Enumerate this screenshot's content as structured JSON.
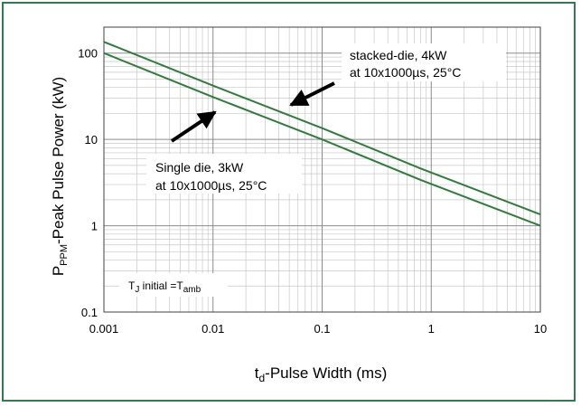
{
  "colors": {
    "frame_border": "#2e7d4f",
    "series_line": "#2e7d3a",
    "grid_major": "#8c8c8c",
    "grid_minor": "#c8c8c8",
    "arrow": "#000000"
  },
  "chart_data": {
    "type": "line",
    "title": "",
    "xlabel": "-Pulse Width (ms)",
    "xlabel_symbol": "t",
    "xlabel_subscript": "d",
    "ylabel": "-Peak Pulse Power (kW)",
    "ylabel_symbol": "P",
    "ylabel_subscript": "PPM",
    "xscale": "log",
    "yscale": "log",
    "xlim": [
      0.001,
      10
    ],
    "ylim": [
      0.1,
      200
    ],
    "grid": true,
    "x_ticks": [
      "0.001",
      "0.01",
      "0.1",
      "1",
      "10"
    ],
    "y_ticks": [
      "0.1",
      "1",
      "10",
      "100"
    ],
    "series": [
      {
        "points": [
          [
            0.001,
            135
          ],
          [
            0.01,
            42
          ],
          [
            0.1,
            13.5
          ],
          [
            0.8,
            4.6
          ],
          [
            10,
            1.35
          ]
        ]
      },
      {
        "points": [
          [
            0.001,
            100
          ],
          [
            0.01,
            31
          ],
          [
            0.1,
            10
          ],
          [
            0.8,
            3.4
          ],
          [
            10,
            1.0
          ]
        ]
      }
    ],
    "annotations": [
      {
        "lines": [
          "stacked-die, 4kW",
          "at 10x1000µs, 25°C"
        ]
      },
      {
        "lines": [
          "Single die, 3kW",
          "at 10x1000µs, 25°C"
        ]
      }
    ],
    "note": {
      "prefix": "T",
      "sub1": "J",
      "middle": " initial =T",
      "sub2": "amb"
    }
  }
}
